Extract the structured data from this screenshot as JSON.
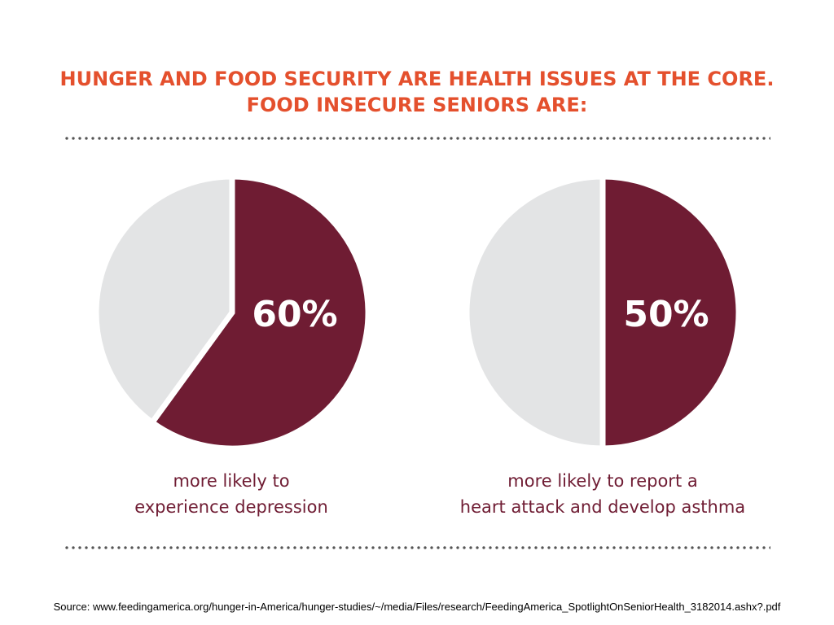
{
  "title": {
    "line1": "HUNGER AND FOOD SECURITY ARE HEALTH ISSUES AT THE CORE.",
    "line2": "FOOD INSECURE SENIORS ARE:"
  },
  "colors": {
    "title": "#e4502d",
    "highlight": "#6f1c33",
    "remainder": "#e3e4e5",
    "label": "#ffffff"
  },
  "chart_data": [
    {
      "type": "pie",
      "slices": [
        {
          "label": "more likely to experience depression",
          "value": 60
        },
        {
          "label": "remainder",
          "value": 40
        }
      ],
      "value_label": "60%",
      "caption": [
        "more likely to",
        "experience depression"
      ]
    },
    {
      "type": "pie",
      "slices": [
        {
          "label": "more likely to report a heart attack and develop asthma",
          "value": 50
        },
        {
          "label": "remainder",
          "value": 50
        }
      ],
      "value_label": "50%",
      "caption": [
        "more likely to report a",
        "heart attack and develop asthma"
      ]
    }
  ],
  "source": "Source: www.feedingamerica.org/hunger-in-America/hunger-studies/~/media/Files/research/FeedingAmerica_SpotlightOnSeniorHealth_3182014.ashx?.pdf"
}
